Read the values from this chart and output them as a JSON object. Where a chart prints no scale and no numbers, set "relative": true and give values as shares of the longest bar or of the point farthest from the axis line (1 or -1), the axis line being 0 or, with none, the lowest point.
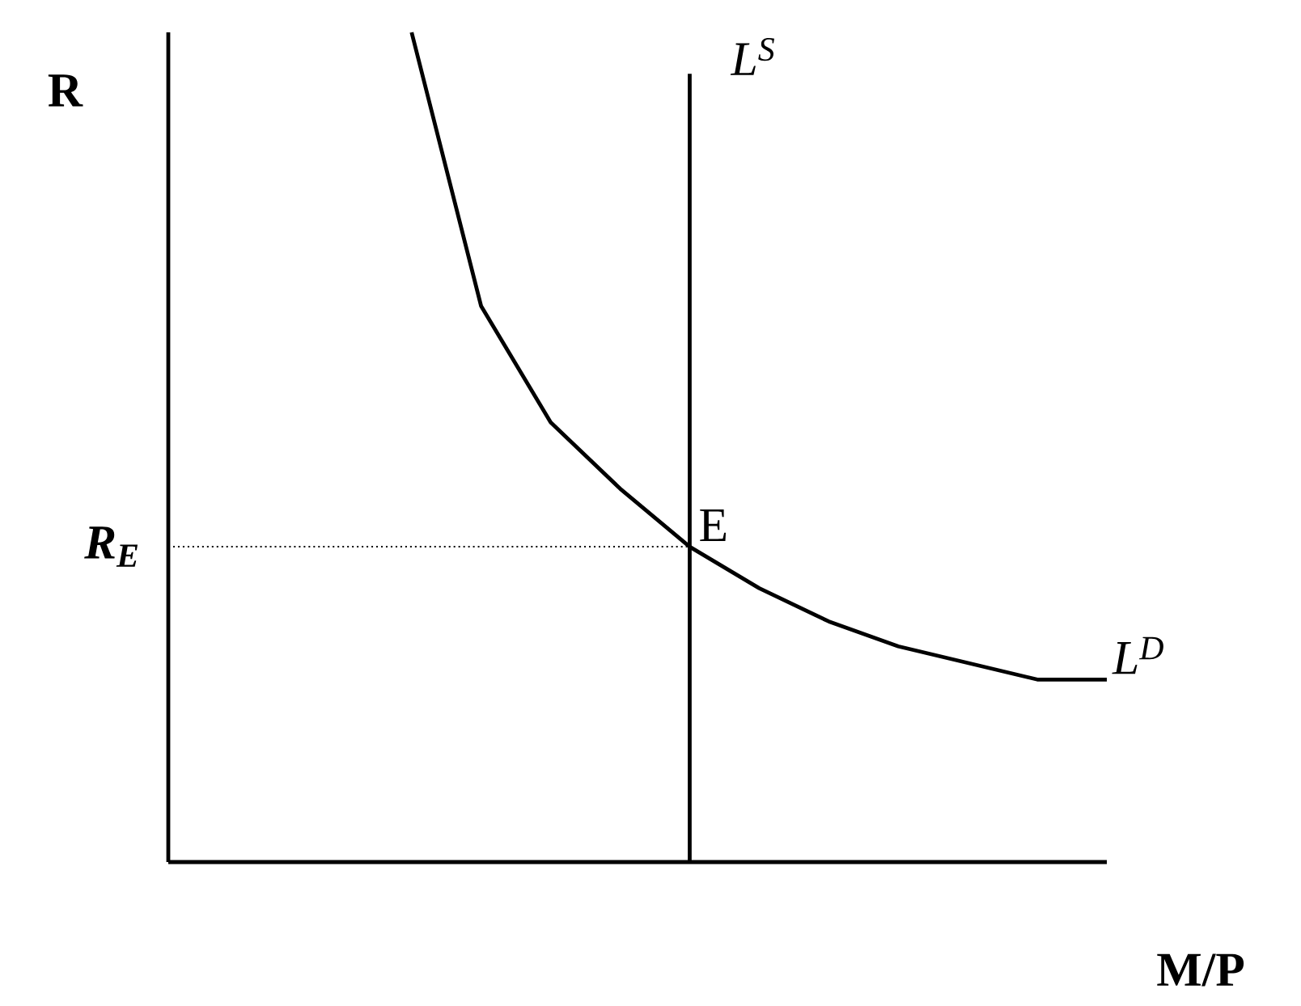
{
  "chart_data": {
    "type": "line",
    "relative": true,
    "xlabel": "M/P",
    "tick_labels": false,
    "legend": false,
    "categories": [
      null,
      null,
      null,
      null,
      null,
      null,
      null,
      null,
      null,
      null,
      null
    ],
    "series": [
      {
        "name": "L$^{D}$",
        "color": "#000000",
        "values": [
          1.0,
          0.67,
          0.53,
          0.45,
          0.38,
          0.33,
          0.29,
          0.26,
          0.24,
          0.22,
          0.22
        ]
      }
    ],
    "ref_lines": [
      {
        "axis": "y",
        "value": 0.38,
        "label": "R$_{E}$",
        "color": "#000000",
        "line_style": "dotted"
      }
    ],
    "annotations": [
      "R",
      "L$^{S}$",
      "E"
    ]
  }
}
